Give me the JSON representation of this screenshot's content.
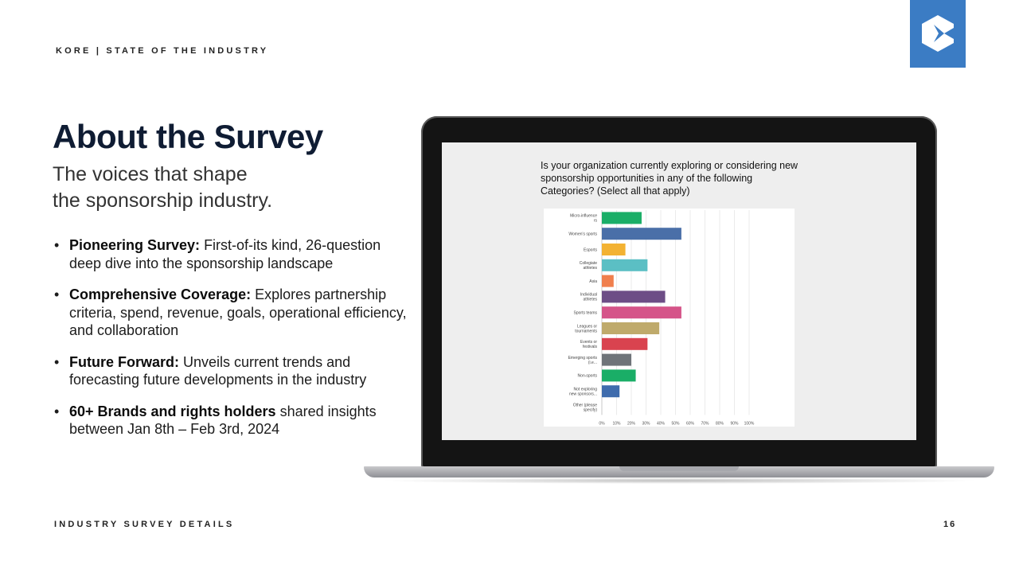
{
  "header": {
    "brand": "KORE",
    "section": "STATE OF THE INDUSTRY"
  },
  "title": "About the Survey",
  "subtitle": {
    "line1": "The voices that shape",
    "line2": "the sponsorship industry."
  },
  "bullets": [
    {
      "bold": "Pioneering Survey:",
      "text": " First-of-its kind, 26-question deep dive into the sponsorship landscape"
    },
    {
      "bold": "Comprehensive Coverage:",
      "text": " Explores partnership criteria, spend, revenue, goals, operational efficiency, and collaboration"
    },
    {
      "bold": "Future Forward:",
      "text": " Unveils current trends and forecasting future developments in the industry"
    },
    {
      "bold": "60+ Brands and rights holders",
      "text": " shared insights between Jan 8th – Feb 3rd, 2024"
    }
  ],
  "footer": {
    "left": "INDUSTRY SURVEY DETAILS",
    "page": "16"
  },
  "question": "Is your organization currently exploring or considering new sponsorship opportunities in any of the following Categories? (Select all that apply)",
  "chart_data": {
    "type": "bar",
    "orientation": "horizontal",
    "categories": [
      "Micro-influencers",
      "Women's sports",
      "Esports",
      "Collegiate athletes",
      "Asia",
      "Individual athletes",
      "Sports teams",
      "Leagues or tournaments",
      "Events or festivals",
      "Emerging sports (i.e...",
      "Non-sports",
      "Not exploring new sponsors...",
      "Other (please specify)"
    ],
    "values": [
      27,
      54,
      16,
      31,
      8,
      43,
      54,
      39,
      31,
      20,
      23,
      12,
      0
    ],
    "colors": [
      "#1aae67",
      "#4a6fa8",
      "#f3b233",
      "#5bbfc4",
      "#f07f4d",
      "#6d4d86",
      "#d55489",
      "#bfaa6b",
      "#d9434f",
      "#6f7479",
      "#1aae67",
      "#3f6cad",
      "#cccccc"
    ],
    "xticks": [
      "0%",
      "10%",
      "20%",
      "30%",
      "40%",
      "50%",
      "60%",
      "70%",
      "80%",
      "90%",
      "100%"
    ],
    "xlim": [
      0,
      100
    ],
    "grid": true
  }
}
